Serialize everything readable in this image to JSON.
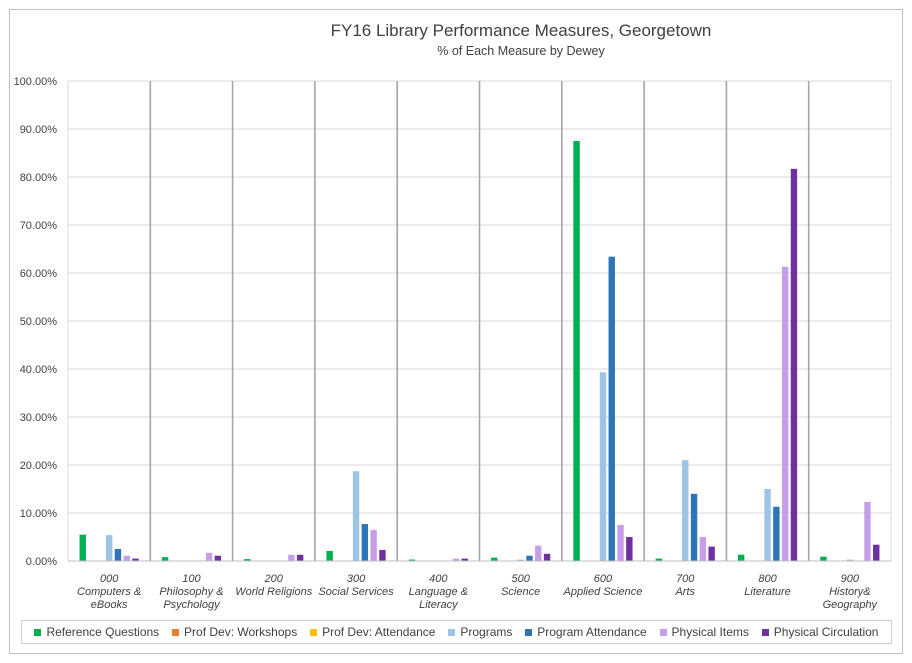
{
  "chart_data": {
    "type": "bar",
    "title": "FY16 Library Performance Measures, Georgetown",
    "subtitle": "% of Each Measure by Dewey",
    "xlabel": "",
    "ylabel": "",
    "ylim": [
      0,
      100
    ],
    "yticks": [
      "0.00%",
      "10.00%",
      "20.00%",
      "30.00%",
      "40.00%",
      "50.00%",
      "60.00%",
      "70.00%",
      "80.00%",
      "90.00%",
      "100.00%"
    ],
    "categories": [
      {
        "code": "000",
        "lines": [
          "Computers &",
          "eBooks"
        ]
      },
      {
        "code": "100",
        "lines": [
          "Philosophy &",
          "Psychology"
        ]
      },
      {
        "code": "200",
        "lines": [
          "World Religions"
        ]
      },
      {
        "code": "300",
        "lines": [
          "Social Services"
        ]
      },
      {
        "code": "400",
        "lines": [
          "Language &",
          "Literacy"
        ]
      },
      {
        "code": "500",
        "lines": [
          "Science"
        ]
      },
      {
        "code": "600",
        "lines": [
          "Applied Science"
        ]
      },
      {
        "code": "700",
        "lines": [
          "Arts"
        ]
      },
      {
        "code": "800",
        "lines": [
          "Literature"
        ]
      },
      {
        "code": "900",
        "lines": [
          "History&",
          "Geography"
        ]
      }
    ],
    "series": [
      {
        "name": "Reference Questions",
        "color": "#00b050",
        "values": [
          5.5,
          0.8,
          0.4,
          2.1,
          0.3,
          0.7,
          87.5,
          0.5,
          1.3,
          0.9
        ]
      },
      {
        "name": "Prof Dev: Workshops",
        "color": "#ed7d31",
        "values": [
          0,
          0,
          0,
          0,
          0,
          0,
          0,
          0,
          0,
          0
        ]
      },
      {
        "name": "Prof Dev: Attendance",
        "color": "#ffc000",
        "values": [
          0,
          0,
          0,
          0,
          0,
          0,
          0,
          0,
          0,
          0
        ]
      },
      {
        "name": "Programs",
        "color": "#9dc3e6",
        "values": [
          5.4,
          0,
          0,
          18.7,
          0,
          0.3,
          39.3,
          21.0,
          15.0,
          0.3
        ]
      },
      {
        "name": "Program Attendance",
        "color": "#2e75b6",
        "values": [
          2.5,
          0,
          0,
          7.7,
          0,
          1.1,
          63.4,
          14.0,
          11.3,
          0
        ]
      },
      {
        "name": "Physical Items",
        "color": "#c5a0e8",
        "values": [
          1.1,
          1.7,
          1.3,
          6.5,
          0.5,
          3.2,
          7.5,
          5.0,
          61.3,
          12.3
        ]
      },
      {
        "name": "Physical Circulation",
        "color": "#7030a0",
        "values": [
          0.5,
          1.1,
          1.3,
          2.3,
          0.5,
          1.5,
          5.0,
          3.0,
          81.7,
          3.4
        ]
      }
    ]
  }
}
